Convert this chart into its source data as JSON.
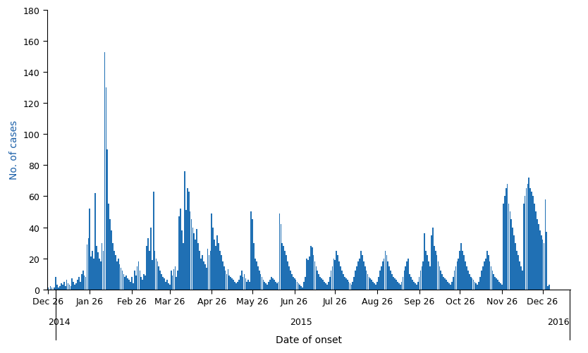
{
  "bar_color": "#2070b4",
  "bar_edgecolor": "#2070b4",
  "xlabel": "Date of onset",
  "ylabel": "No. of cases",
  "ylim": [
    0,
    180
  ],
  "yticks": [
    0,
    20,
    40,
    60,
    80,
    100,
    120,
    140,
    160,
    180
  ],
  "text_color": "#000000",
  "xlabel_color": "#000000",
  "ylabel_color": "#1a5fa8",
  "tick_color": "#000000",
  "axis_label_fontsize": 10,
  "tick_label_fontsize": 9,
  "start_date": "2014-12-26",
  "xtick_dates": [
    "2014-12-26",
    "2015-01-26",
    "2015-02-26",
    "2015-03-26",
    "2015-04-26",
    "2015-05-26",
    "2015-06-26",
    "2015-07-26",
    "2015-08-26",
    "2015-09-26",
    "2015-10-26",
    "2015-11-26",
    "2015-12-26"
  ],
  "xtick_labels": [
    "Dec 26",
    "Jan 26",
    "Feb 26",
    "Mar 26",
    "Apr 26",
    "May 26",
    "Jun 26",
    "Jul 26",
    "Aug 26",
    "Sep 26",
    "Oct 26",
    "Nov 26",
    "Dec 26"
  ],
  "background_color": "#ffffff",
  "daily_values": [
    1,
    0,
    2,
    1,
    0,
    1,
    8,
    3,
    1,
    2,
    4,
    3,
    5,
    2,
    6,
    4,
    3,
    2,
    7,
    5,
    3,
    4,
    6,
    8,
    5,
    10,
    12,
    9,
    8,
    29,
    33,
    52,
    21,
    25,
    20,
    62,
    28,
    24,
    20,
    18,
    30,
    25,
    153,
    130,
    90,
    55,
    45,
    38,
    30,
    25,
    22,
    18,
    20,
    16,
    14,
    12,
    10,
    8,
    9,
    7,
    6,
    5,
    8,
    4,
    12,
    9,
    15,
    18,
    12,
    8,
    6,
    10,
    9,
    28,
    33,
    25,
    40,
    19,
    63,
    25,
    20,
    18,
    15,
    12,
    10,
    8,
    7,
    5,
    6,
    4,
    3,
    12,
    9,
    13,
    15,
    8,
    12,
    47,
    52,
    38,
    30,
    76,
    51,
    65,
    63,
    50,
    45,
    40,
    36,
    32,
    39,
    30,
    25,
    20,
    22,
    18,
    16,
    14,
    26,
    22,
    25,
    49,
    40,
    32,
    28,
    35,
    30,
    25,
    22,
    18,
    15,
    12,
    10,
    13,
    9,
    8,
    7,
    6,
    5,
    4,
    5,
    6,
    9,
    12,
    8,
    10,
    7,
    5,
    6,
    5,
    50,
    45,
    30,
    20,
    18,
    15,
    12,
    10,
    8,
    6,
    5,
    4,
    3,
    5,
    6,
    8,
    7,
    6,
    5,
    4,
    5,
    49,
    42,
    30,
    28,
    25,
    22,
    18,
    15,
    12,
    10,
    8,
    7,
    6,
    5,
    4,
    3,
    2,
    1,
    5,
    8,
    20,
    19,
    21,
    28,
    27,
    22,
    18,
    15,
    12,
    10,
    8,
    7,
    6,
    5,
    4,
    3,
    5,
    8,
    12,
    15,
    20,
    19,
    25,
    22,
    18,
    15,
    12,
    10,
    8,
    7,
    6,
    5,
    4,
    3,
    5,
    8,
    12,
    15,
    18,
    20,
    25,
    22,
    18,
    15,
    12,
    10,
    8,
    7,
    6,
    5,
    4,
    3,
    5,
    8,
    12,
    15,
    18,
    20,
    25,
    22,
    18,
    15,
    12,
    10,
    8,
    7,
    6,
    5,
    4,
    3,
    5,
    8,
    12,
    15,
    18,
    20,
    10,
    8,
    6,
    5,
    4,
    3,
    5,
    8,
    12,
    15,
    18,
    36,
    25,
    22,
    18,
    15,
    35,
    40,
    28,
    25,
    22,
    18,
    15,
    12,
    10,
    8,
    7,
    6,
    5,
    4,
    3,
    5,
    8,
    12,
    15,
    18,
    20,
    25,
    30,
    25,
    22,
    18,
    15,
    12,
    10,
    8,
    7,
    6,
    5,
    4,
    3,
    5,
    8,
    12,
    15,
    18,
    20,
    25,
    22,
    18,
    15,
    12,
    10,
    8,
    7,
    6,
    5,
    4,
    3,
    55,
    60,
    65,
    68,
    55,
    50,
    45,
    40,
    35,
    30,
    25,
    22,
    18,
    15,
    12,
    55,
    60,
    65,
    68,
    72,
    65,
    63,
    60,
    55,
    50,
    45,
    42,
    38,
    35,
    32,
    30,
    58,
    37,
    2,
    3
  ]
}
